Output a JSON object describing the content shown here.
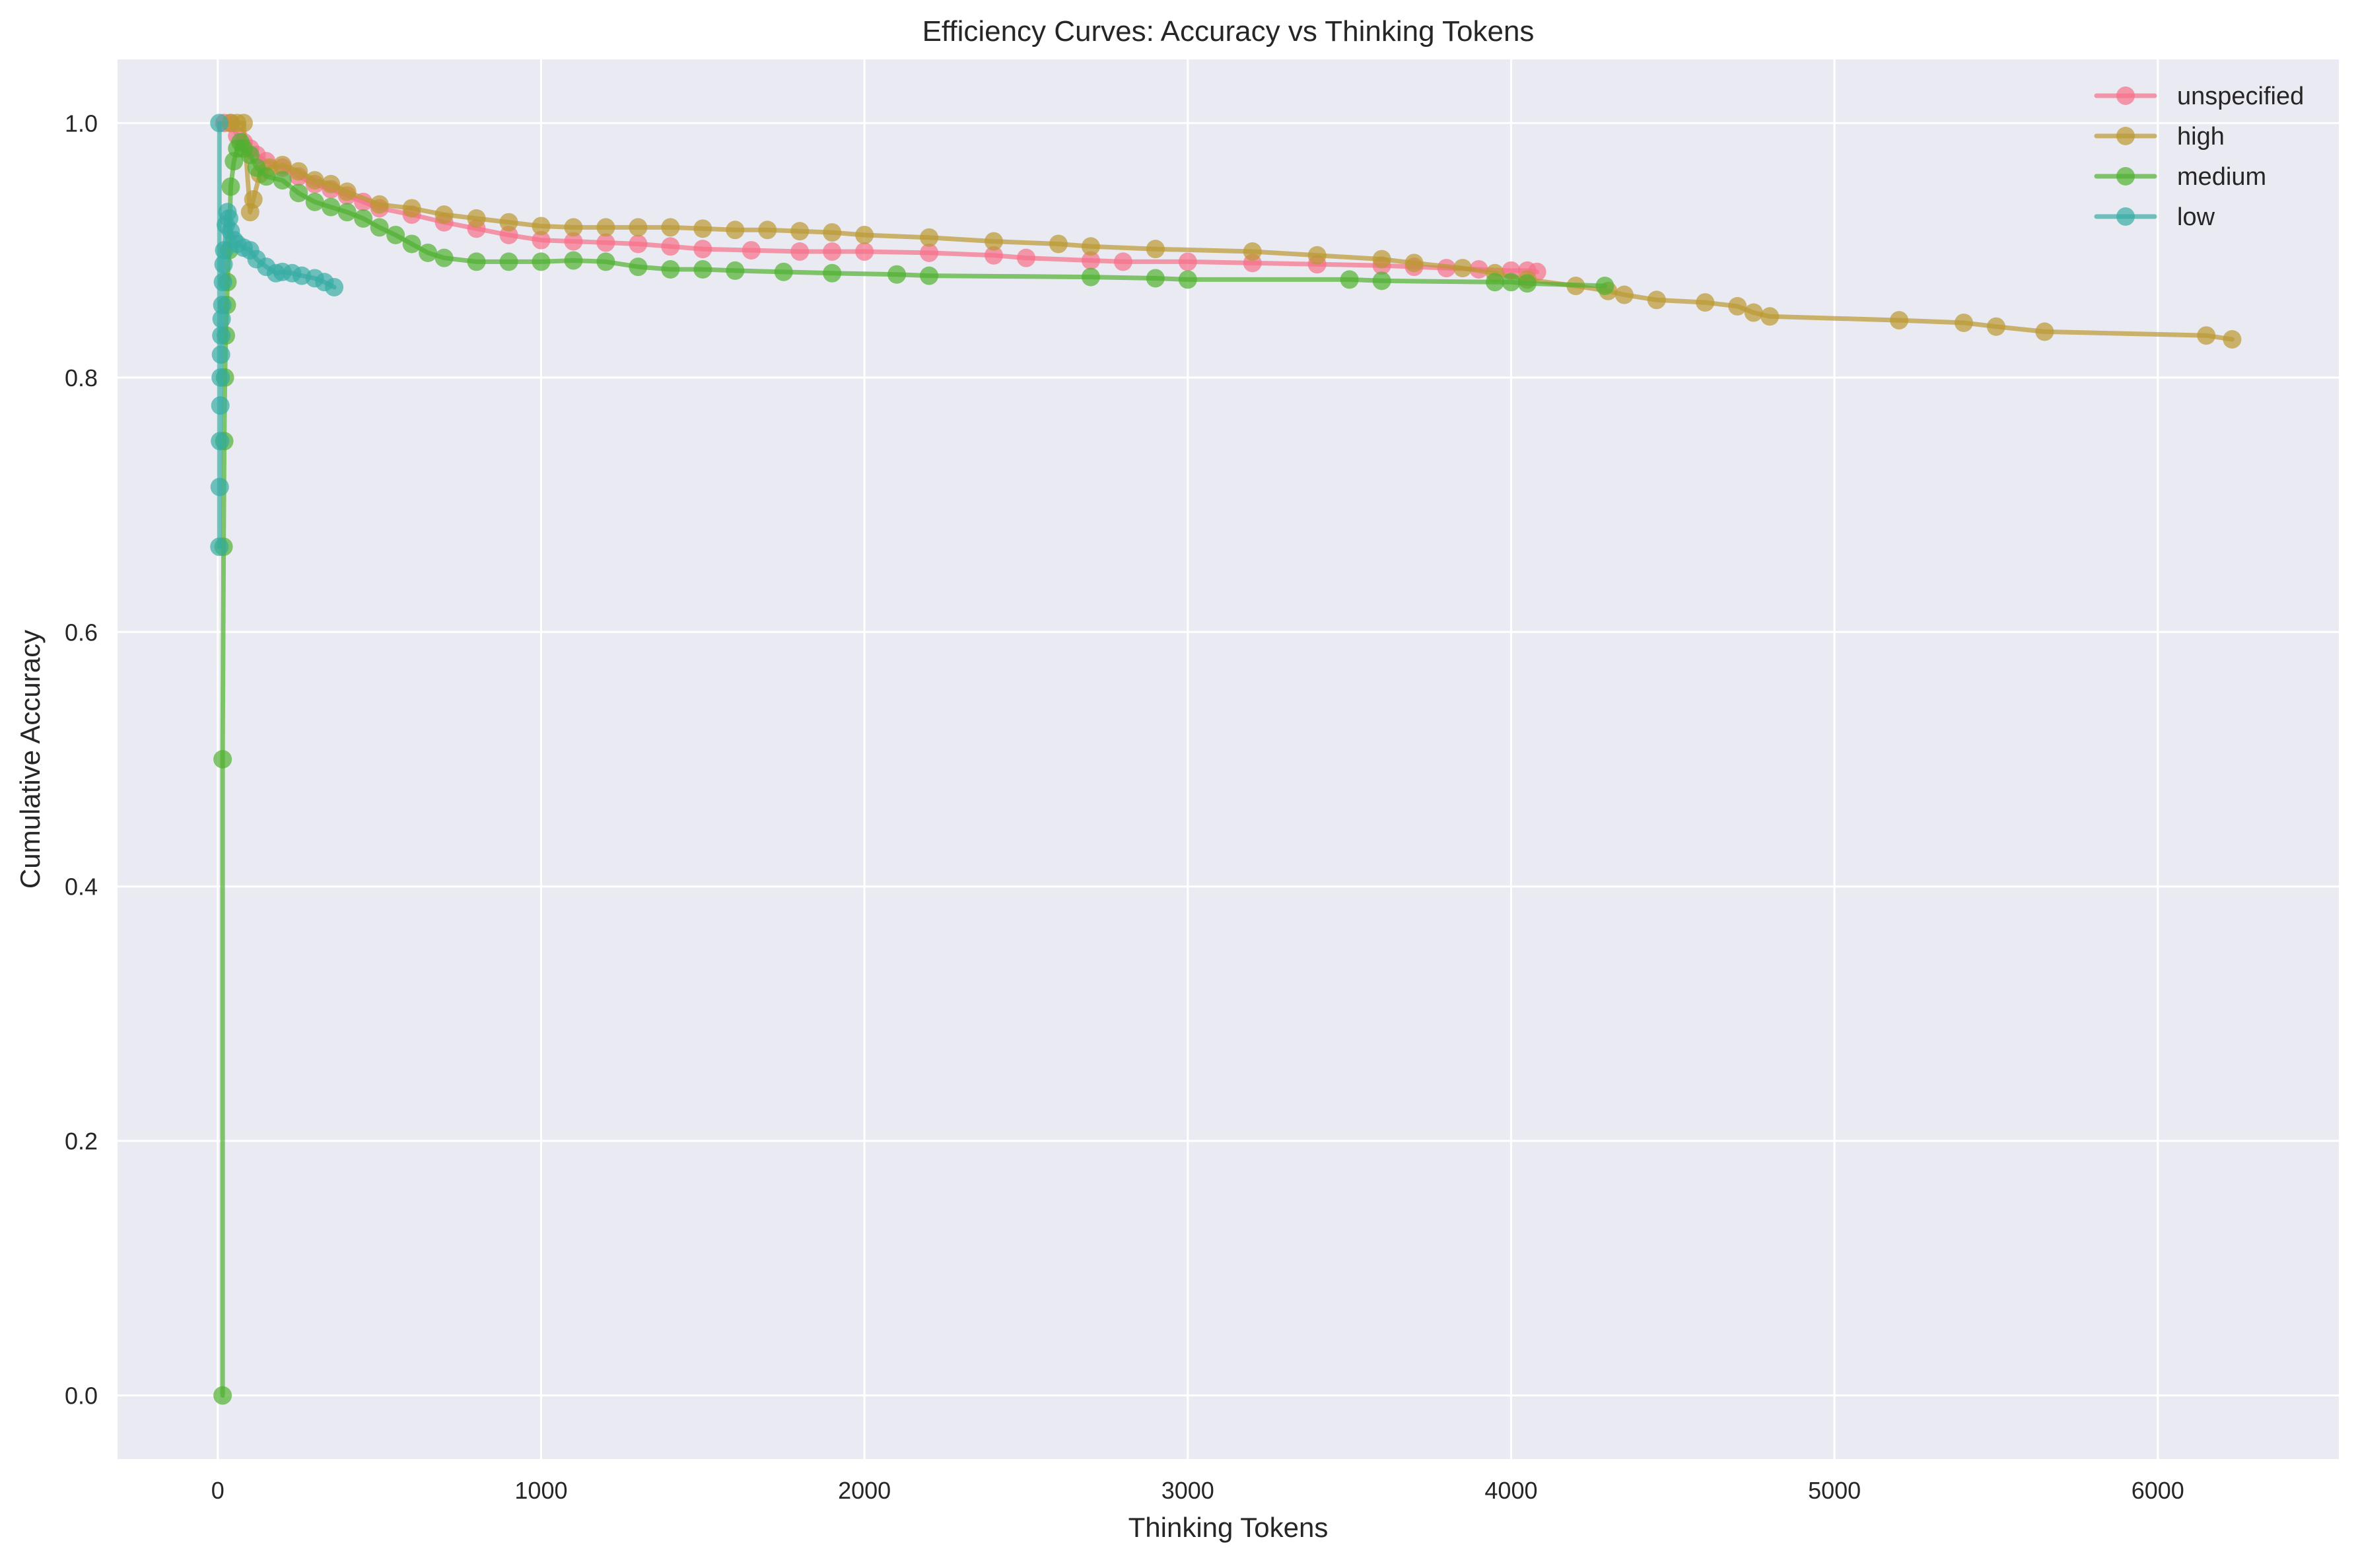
{
  "chart_data": {
    "type": "line",
    "title": "Efficiency Curves: Accuracy vs Thinking Tokens",
    "xlabel": "Thinking Tokens",
    "ylabel": "Cumulative Accuracy",
    "xlim": [
      -310,
      6560
    ],
    "ylim": [
      -0.05,
      1.05
    ],
    "xticks": [
      0,
      1000,
      2000,
      3000,
      4000,
      5000,
      6000
    ],
    "xtick_labels": [
      "0",
      "1000",
      "2000",
      "3000",
      "4000",
      "5000",
      "6000"
    ],
    "yticks": [
      0.0,
      0.2,
      0.4,
      0.6,
      0.8,
      1.0
    ],
    "ytick_labels": [
      "0.0",
      "0.2",
      "0.4",
      "0.6",
      "0.8",
      "1.0"
    ],
    "grid": true,
    "legend_position": "upper right",
    "marker": "circle",
    "series": [
      {
        "name": "unspecified",
        "color": "#F77189",
        "x": [
          20,
          40,
          60,
          80,
          100,
          120,
          150,
          200,
          250,
          300,
          350,
          400,
          450,
          500,
          600,
          700,
          800,
          900,
          1000,
          1100,
          1200,
          1300,
          1400,
          1500,
          1650,
          1800,
          1900,
          2000,
          2200,
          2400,
          2500,
          2700,
          2800,
          3000,
          3200,
          3400,
          3600,
          3700,
          3800,
          3900,
          4000,
          4050,
          4080
        ],
        "values": [
          1.0,
          1.0,
          0.99,
          0.985,
          0.98,
          0.975,
          0.97,
          0.965,
          0.958,
          0.952,
          0.948,
          0.943,
          0.938,
          0.933,
          0.928,
          0.922,
          0.917,
          0.912,
          0.908,
          0.907,
          0.906,
          0.905,
          0.903,
          0.901,
          0.9,
          0.899,
          0.899,
          0.899,
          0.898,
          0.896,
          0.894,
          0.892,
          0.891,
          0.891,
          0.89,
          0.889,
          0.888,
          0.887,
          0.886,
          0.885,
          0.884,
          0.884,
          0.883
        ]
      },
      {
        "name": "high",
        "color": "#BB9832",
        "x": [
          40,
          60,
          80,
          100,
          110,
          130,
          160,
          200,
          250,
          300,
          350,
          400,
          500,
          600,
          700,
          800,
          900,
          1000,
          1100,
          1200,
          1300,
          1400,
          1500,
          1600,
          1700,
          1800,
          1900,
          2000,
          2200,
          2400,
          2600,
          2700,
          2900,
          3200,
          3400,
          3600,
          3700,
          3850,
          3950,
          4050,
          4200,
          4300,
          4350,
          4450,
          4600,
          4700,
          4750,
          4800,
          5200,
          5400,
          5500,
          5650,
          6150,
          6230
        ],
        "values": [
          1.0,
          1.0,
          1.0,
          0.93,
          0.94,
          0.96,
          0.965,
          0.967,
          0.962,
          0.955,
          0.952,
          0.946,
          0.936,
          0.933,
          0.928,
          0.925,
          0.922,
          0.919,
          0.918,
          0.918,
          0.918,
          0.918,
          0.917,
          0.916,
          0.916,
          0.915,
          0.914,
          0.912,
          0.91,
          0.907,
          0.905,
          0.903,
          0.901,
          0.899,
          0.896,
          0.893,
          0.89,
          0.886,
          0.882,
          0.877,
          0.872,
          0.868,
          0.865,
          0.861,
          0.859,
          0.856,
          0.851,
          0.848,
          0.845,
          0.843,
          0.84,
          0.836,
          0.833,
          0.83
        ]
      },
      {
        "name": "medium",
        "color": "#50B131",
        "x": [
          15,
          15,
          18,
          20,
          22,
          25,
          28,
          30,
          35,
          40,
          50,
          60,
          70,
          80,
          100,
          120,
          150,
          200,
          250,
          300,
          350,
          400,
          450,
          500,
          550,
          600,
          650,
          700,
          800,
          900,
          1000,
          1100,
          1200,
          1300,
          1400,
          1500,
          1600,
          1750,
          1900,
          2100,
          2200,
          2700,
          2900,
          3000,
          3500,
          3600,
          3950,
          4000,
          4050,
          4290
        ],
        "values": [
          0.0,
          0.5,
          0.667,
          0.75,
          0.8,
          0.833,
          0.857,
          0.875,
          0.9,
          0.95,
          0.97,
          0.98,
          0.985,
          0.98,
          0.975,
          0.965,
          0.958,
          0.955,
          0.945,
          0.938,
          0.934,
          0.93,
          0.925,
          0.918,
          0.912,
          0.905,
          0.898,
          0.894,
          0.891,
          0.891,
          0.891,
          0.892,
          0.891,
          0.887,
          0.885,
          0.885,
          0.884,
          0.883,
          0.882,
          0.881,
          0.88,
          0.879,
          0.878,
          0.877,
          0.877,
          0.876,
          0.875,
          0.875,
          0.874,
          0.872
        ]
      },
      {
        "name": "low",
        "color": "#36ADA4",
        "x": [
          5,
          5,
          6,
          7,
          8,
          9,
          10,
          11,
          12,
          14,
          16,
          18,
          20,
          25,
          30,
          35,
          40,
          50,
          60,
          80,
          100,
          120,
          150,
          180,
          200,
          230,
          260,
          300,
          330,
          360
        ],
        "values": [
          1.0,
          0.667,
          0.714,
          0.75,
          0.778,
          0.8,
          0.818,
          0.833,
          0.846,
          0.857,
          0.875,
          0.889,
          0.9,
          0.92,
          0.93,
          0.925,
          0.915,
          0.908,
          0.905,
          0.902,
          0.9,
          0.893,
          0.887,
          0.882,
          0.883,
          0.882,
          0.88,
          0.878,
          0.875,
          0.871
        ]
      }
    ]
  },
  "style": {
    "background": "#FFFFFF",
    "plot_background": "#EAEAF2",
    "grid_color": "#FFFFFF",
    "text_color": "#262626"
  }
}
